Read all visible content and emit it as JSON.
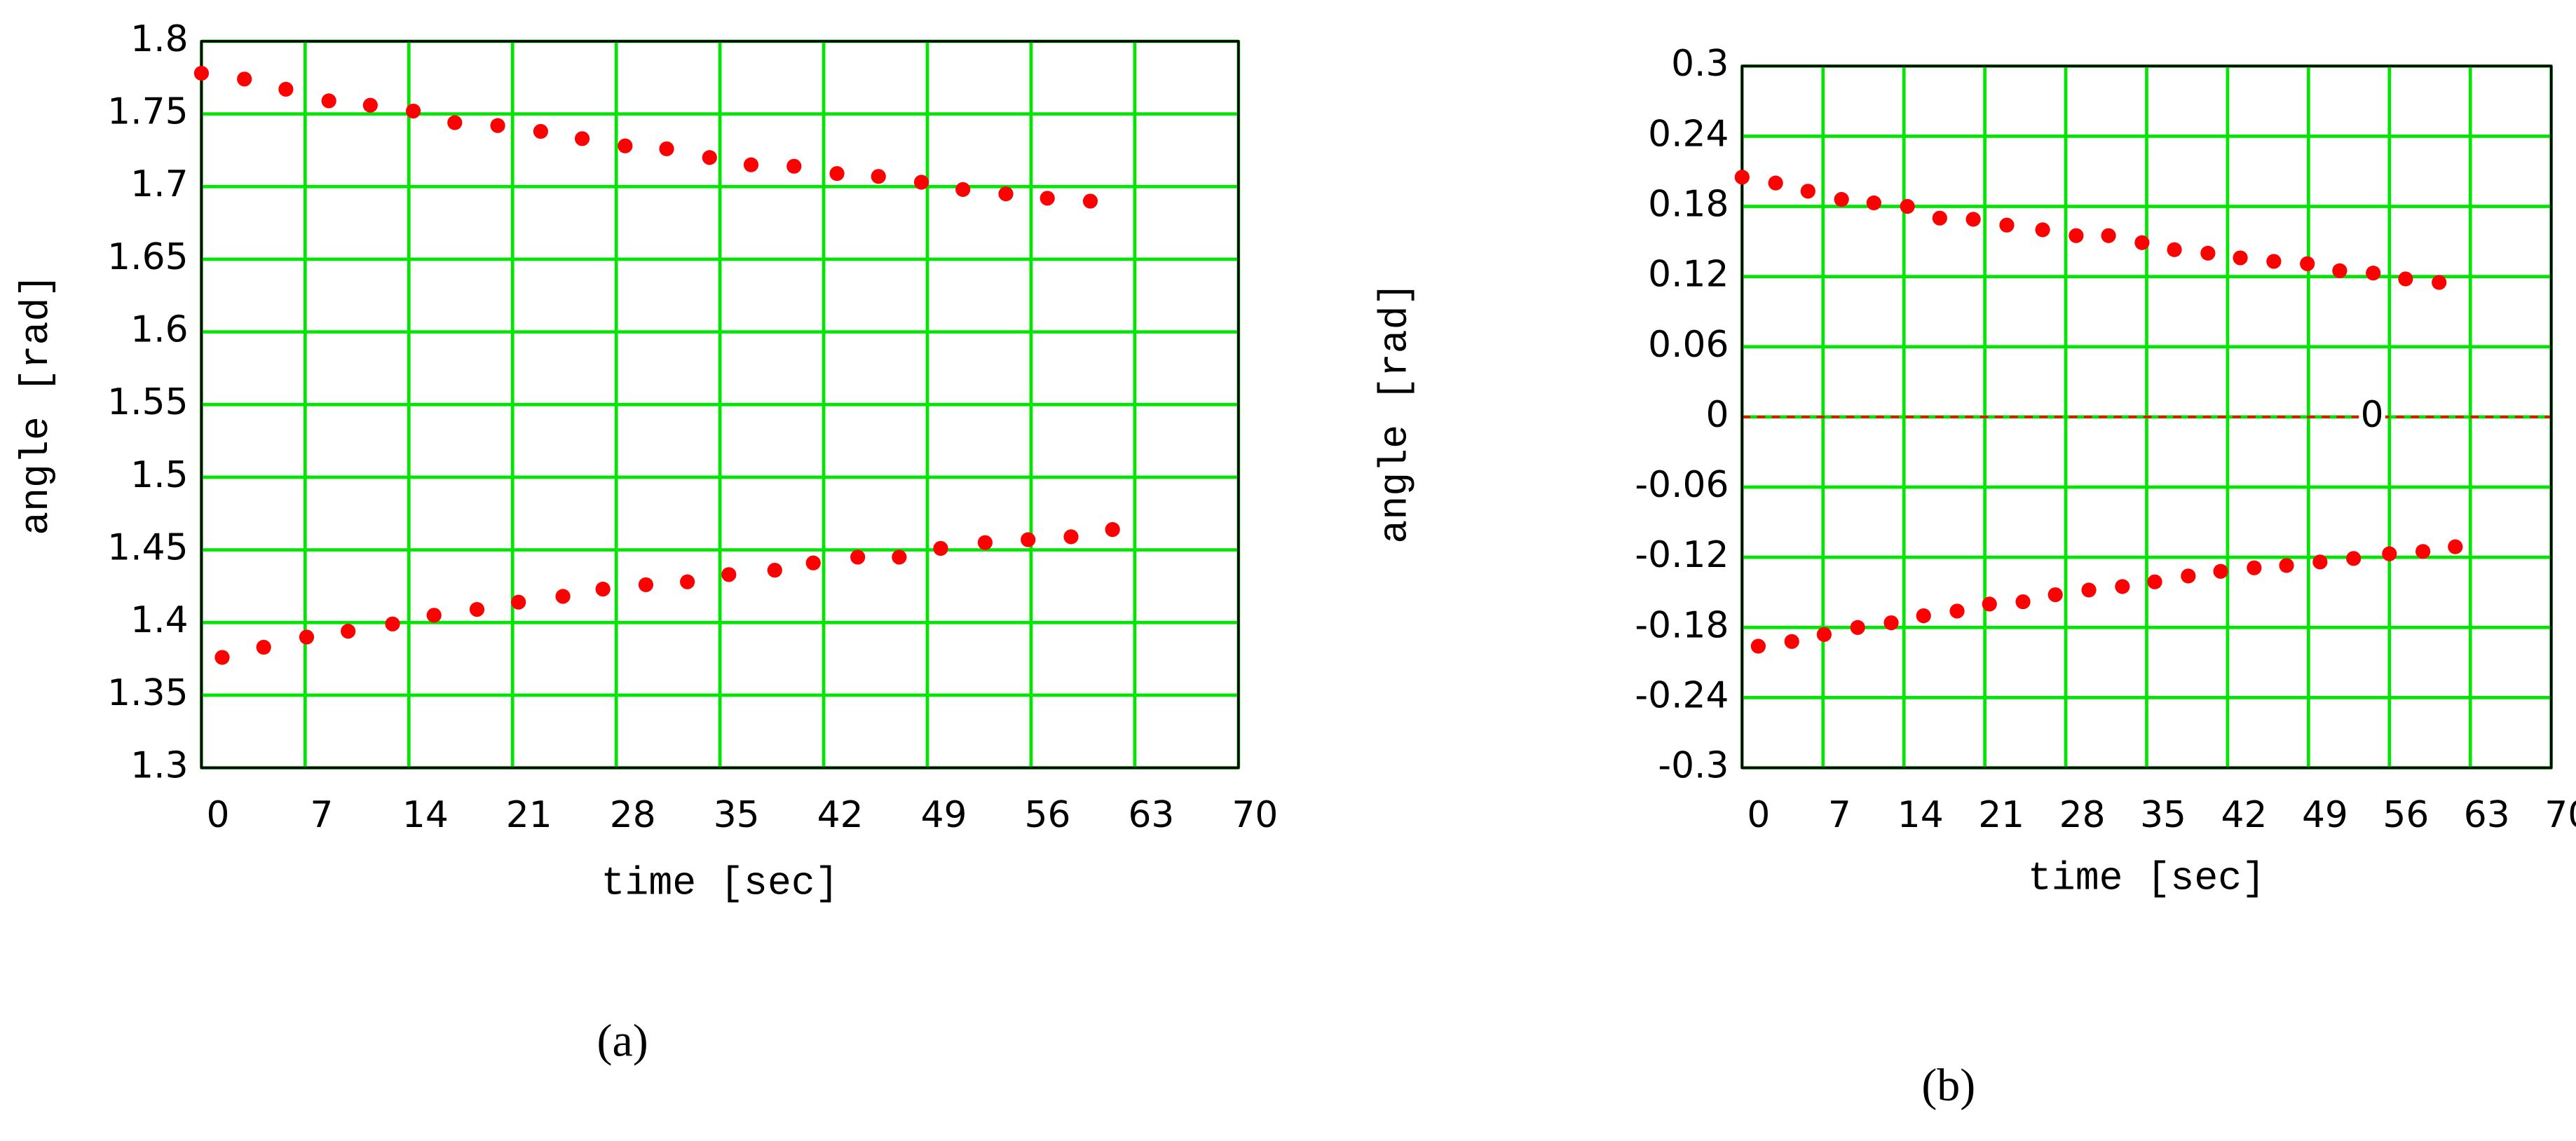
{
  "chart_data": [
    {
      "type": "scatter",
      "label": "(a)",
      "xlabel": "time [sec]",
      "ylabel": "angle [rad]",
      "xlim": [
        0,
        70
      ],
      "xticks": [
        0,
        7,
        14,
        21,
        28,
        35,
        42,
        49,
        56,
        63,
        70
      ],
      "ylim": [
        1.3,
        1.8
      ],
      "yticks": [
        1.3,
        1.35,
        1.4,
        1.45,
        1.5,
        1.55,
        1.6,
        1.65,
        1.7,
        1.75,
        1.8
      ],
      "grid": true,
      "grid_color": "#00e600",
      "series": [
        {
          "color": "#ff0000",
          "x": [
            0,
            2.9,
            5.7,
            8.6,
            11.4,
            14.3,
            17.1,
            20,
            22.9,
            25.7,
            28.6,
            31.4,
            34.3,
            37.1,
            40,
            42.9,
            45.7,
            48.6,
            51.4,
            54.3,
            57.1,
            60
          ],
          "values": [
            1.778,
            1.774,
            1.767,
            1.759,
            1.756,
            1.752,
            1.744,
            1.742,
            1.738,
            1.733,
            1.728,
            1.726,
            1.72,
            1.715,
            1.714,
            1.709,
            1.707,
            1.703,
            1.698,
            1.695,
            1.692,
            1.69
          ]
        },
        {
          "color": "#ff0000",
          "x": [
            1.4,
            4.2,
            7.1,
            9.9,
            12.9,
            15.7,
            18.6,
            21.4,
            24.4,
            27.1,
            30,
            32.8,
            35.6,
            38.7,
            41.3,
            44.3,
            47.1,
            49.9,
            52.9,
            55.8,
            58.7,
            61.5
          ],
          "values": [
            1.376,
            1.383,
            1.39,
            1.394,
            1.399,
            1.405,
            1.409,
            1.414,
            1.418,
            1.423,
            1.426,
            1.428,
            1.433,
            1.436,
            1.441,
            1.445,
            1.445,
            1.451,
            1.455,
            1.457,
            1.459,
            1.464
          ]
        }
      ]
    },
    {
      "type": "scatter",
      "label": "(b)",
      "xlabel": "time [sec]",
      "ylabel": "angle [rad]",
      "xlim": [
        0,
        70
      ],
      "xticks": [
        0,
        7,
        14,
        21,
        28,
        35,
        42,
        49,
        56,
        63,
        70
      ],
      "ylim": [
        -0.3,
        0.3
      ],
      "yticks": [
        -0.3,
        -0.24,
        -0.18,
        -0.12,
        -0.06,
        0,
        0.06,
        0.12,
        0.18,
        0.24,
        0.3
      ],
      "grid": true,
      "grid_color": "#00e600",
      "hlines": [
        {
          "y": 0,
          "color": "#ff0000",
          "label": "0",
          "label_x": 54.5
        }
      ],
      "series": [
        {
          "color": "#ff0000",
          "x": [
            0,
            2.9,
            5.7,
            8.6,
            11.4,
            14.3,
            17.1,
            20,
            22.9,
            26,
            28.9,
            31.7,
            34.6,
            37.4,
            40.3,
            43.1,
            46,
            48.9,
            51.7,
            54.6,
            57.4,
            60.3
          ],
          "values": [
            0.205,
            0.2,
            0.193,
            0.186,
            0.183,
            0.18,
            0.17,
            0.169,
            0.164,
            0.16,
            0.155,
            0.155,
            0.149,
            0.143,
            0.14,
            0.136,
            0.133,
            0.131,
            0.125,
            0.123,
            0.118,
            0.115
          ]
        },
        {
          "color": "#ff0000",
          "x": [
            1.4,
            4.3,
            7.1,
            10,
            12.9,
            15.7,
            18.6,
            21.4,
            24.3,
            27.1,
            30,
            32.9,
            35.7,
            38.6,
            41.4,
            44.3,
            47.1,
            50,
            52.9,
            56,
            58.9,
            61.7
          ],
          "values": [
            -0.196,
            -0.192,
            -0.186,
            -0.18,
            -0.176,
            -0.17,
            -0.166,
            -0.16,
            -0.158,
            -0.152,
            -0.148,
            -0.145,
            -0.141,
            -0.136,
            -0.132,
            -0.129,
            -0.127,
            -0.124,
            -0.121,
            -0.117,
            -0.115,
            -0.111
          ]
        }
      ]
    }
  ]
}
